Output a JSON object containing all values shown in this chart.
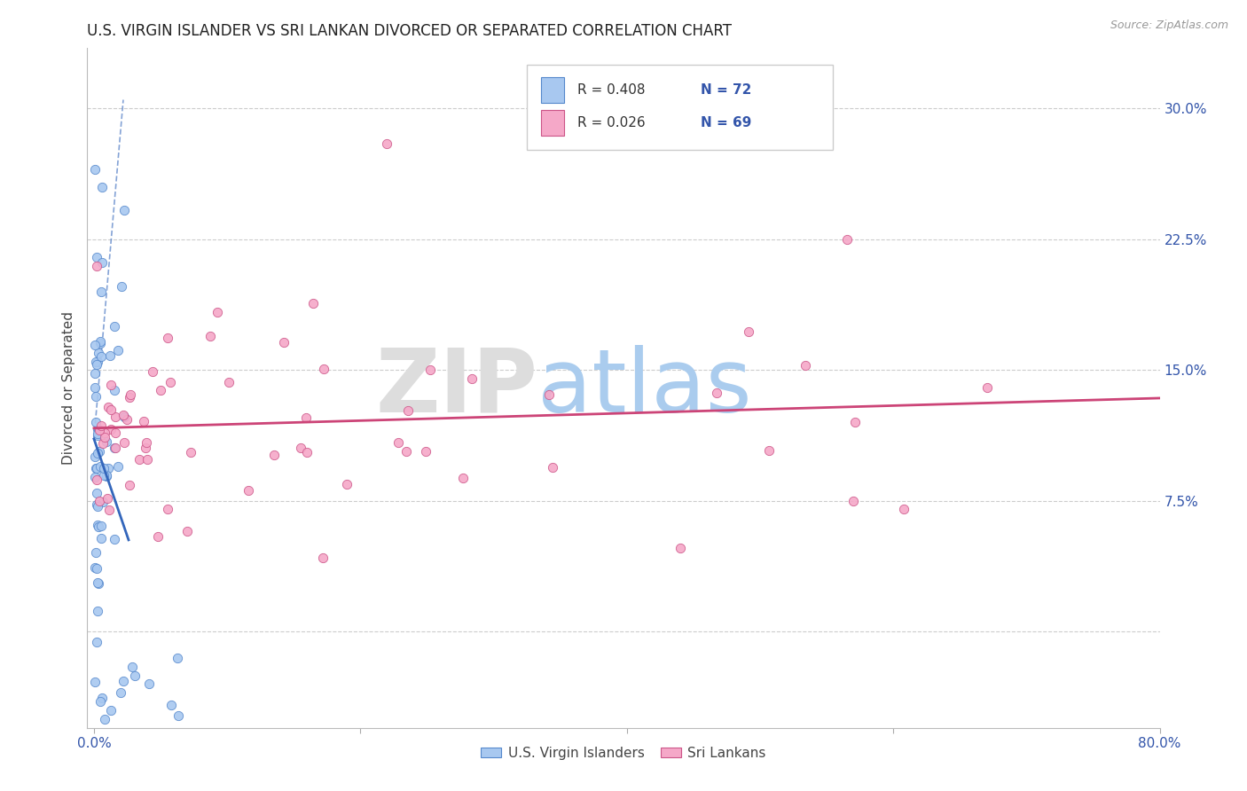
{
  "title": "U.S. VIRGIN ISLANDER VS SRI LANKAN DIVORCED OR SEPARATED CORRELATION CHART",
  "source": "Source: ZipAtlas.com",
  "ylabel": "Divorced or Separated",
  "xlim": [
    -0.005,
    0.8
  ],
  "ylim": [
    -0.055,
    0.335
  ],
  "yticks": [
    0.0,
    0.075,
    0.15,
    0.225,
    0.3
  ],
  "ytick_labels_right": [
    "",
    "7.5%",
    "15.0%",
    "22.5%",
    "30.0%"
  ],
  "xtick_positions": [
    0.0,
    0.2,
    0.4,
    0.6,
    0.8
  ],
  "xtick_labels": [
    "0.0%",
    "",
    "",
    "",
    "80.0%"
  ],
  "color_blue": "#A8C8F0",
  "color_pink": "#F5A8C8",
  "edge_blue": "#5588CC",
  "edge_pink": "#CC5588",
  "line_blue_color": "#3366BB",
  "line_pink_color": "#CC4477",
  "title_fontsize": 12,
  "tick_fontsize": 11,
  "axis_label_fontsize": 11
}
